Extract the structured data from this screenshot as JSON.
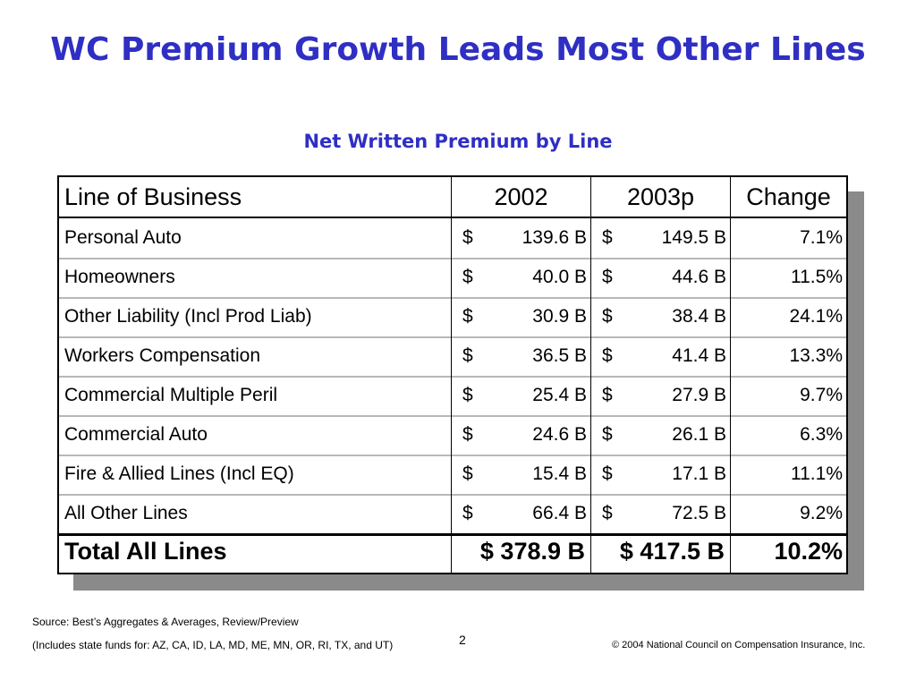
{
  "title": "WC Premium Growth Leads Most Other Lines",
  "subtitle": "Net Written Premium by Line",
  "table": {
    "headers": [
      "Line of Business",
      "2002",
      "2003p",
      "Change"
    ],
    "rows": [
      {
        "line": "Personal Auto",
        "currency_2002": "$",
        "v2002": "139.6 B",
        "currency_2003": "$",
        "v2003": "149.5 B",
        "change": "7.1%"
      },
      {
        "line": "Homeowners",
        "currency_2002": "$",
        "v2002": "40.0 B",
        "currency_2003": "$",
        "v2003": "44.6 B",
        "change": "11.5%"
      },
      {
        "line": "Other Liability (Incl Prod Liab)",
        "currency_2002": "$",
        "v2002": "30.9 B",
        "currency_2003": "$",
        "v2003": "38.4 B",
        "change": "24.1%"
      },
      {
        "line": "Workers Compensation",
        "currency_2002": "$",
        "v2002": "36.5 B",
        "currency_2003": "$",
        "v2003": "41.4 B",
        "change": "13.3%"
      },
      {
        "line": "Commercial Multiple Peril",
        "currency_2002": "$",
        "v2002": "25.4 B",
        "currency_2003": "$",
        "v2003": "27.9 B",
        "change": "9.7%"
      },
      {
        "line": "Commercial Auto",
        "currency_2002": "$",
        "v2002": "24.6 B",
        "currency_2003": "$",
        "v2003": "26.1 B",
        "change": "6.3%"
      },
      {
        "line": "Fire & Allied Lines (Incl EQ)",
        "currency_2002": "$",
        "v2002": "15.4 B",
        "currency_2003": "$",
        "v2003": "17.1 B",
        "change": "11.1%"
      },
      {
        "line": "All Other Lines",
        "currency_2002": "$",
        "v2002": "66.4 B",
        "currency_2003": "$",
        "v2003": "72.5 B",
        "change": "9.2%"
      }
    ],
    "total": {
      "line": "Total All Lines",
      "v2002": "$ 378.9 B",
      "v2003": "$ 417.5 B",
      "change": "10.2%"
    }
  },
  "footer": {
    "source": "Source: Best’s Aggregates & Averages, Review/Preview",
    "note": "(Includes state funds for: AZ, CA, ID, LA, MD, ME, MN, OR, RI, TX, and UT)",
    "page_number": "2",
    "copyright": "© 2004 National Council on Compensation Insurance, Inc."
  },
  "colors": {
    "title": "#2f2fc4",
    "shadow": "#8a8a8a"
  }
}
